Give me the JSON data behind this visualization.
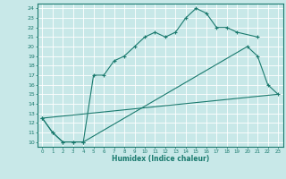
{
  "xlabel": "Humidex (Indice chaleur)",
  "bg_color": "#c8e8e8",
  "grid_color": "#ffffff",
  "line_color": "#1a7a6e",
  "xlim": [
    -0.5,
    23.5
  ],
  "ylim": [
    9.5,
    24.5
  ],
  "xticks": [
    0,
    1,
    2,
    3,
    4,
    5,
    6,
    7,
    8,
    9,
    10,
    11,
    12,
    13,
    14,
    15,
    16,
    17,
    18,
    19,
    20,
    21,
    22,
    23
  ],
  "yticks": [
    10,
    11,
    12,
    13,
    14,
    15,
    16,
    17,
    18,
    19,
    20,
    21,
    22,
    23,
    24
  ],
  "line1_x": [
    0,
    1,
    2,
    3,
    4,
    5,
    6,
    7,
    8,
    9,
    10,
    11,
    12,
    13,
    14,
    15,
    16,
    17,
    18,
    19,
    21
  ],
  "line1_y": [
    12.5,
    11,
    10,
    10,
    10,
    17,
    17,
    18.5,
    19,
    20,
    21,
    21.5,
    21,
    21.5,
    23,
    24,
    23.5,
    22,
    22,
    21.5,
    21
  ],
  "line2_x": [
    0,
    23
  ],
  "line2_y": [
    12.5,
    15.0
  ],
  "line3_x": [
    0,
    1,
    2,
    3,
    4,
    20,
    21,
    22,
    23
  ],
  "line3_y": [
    12.5,
    11,
    10,
    10,
    10,
    20,
    19,
    16,
    15
  ]
}
